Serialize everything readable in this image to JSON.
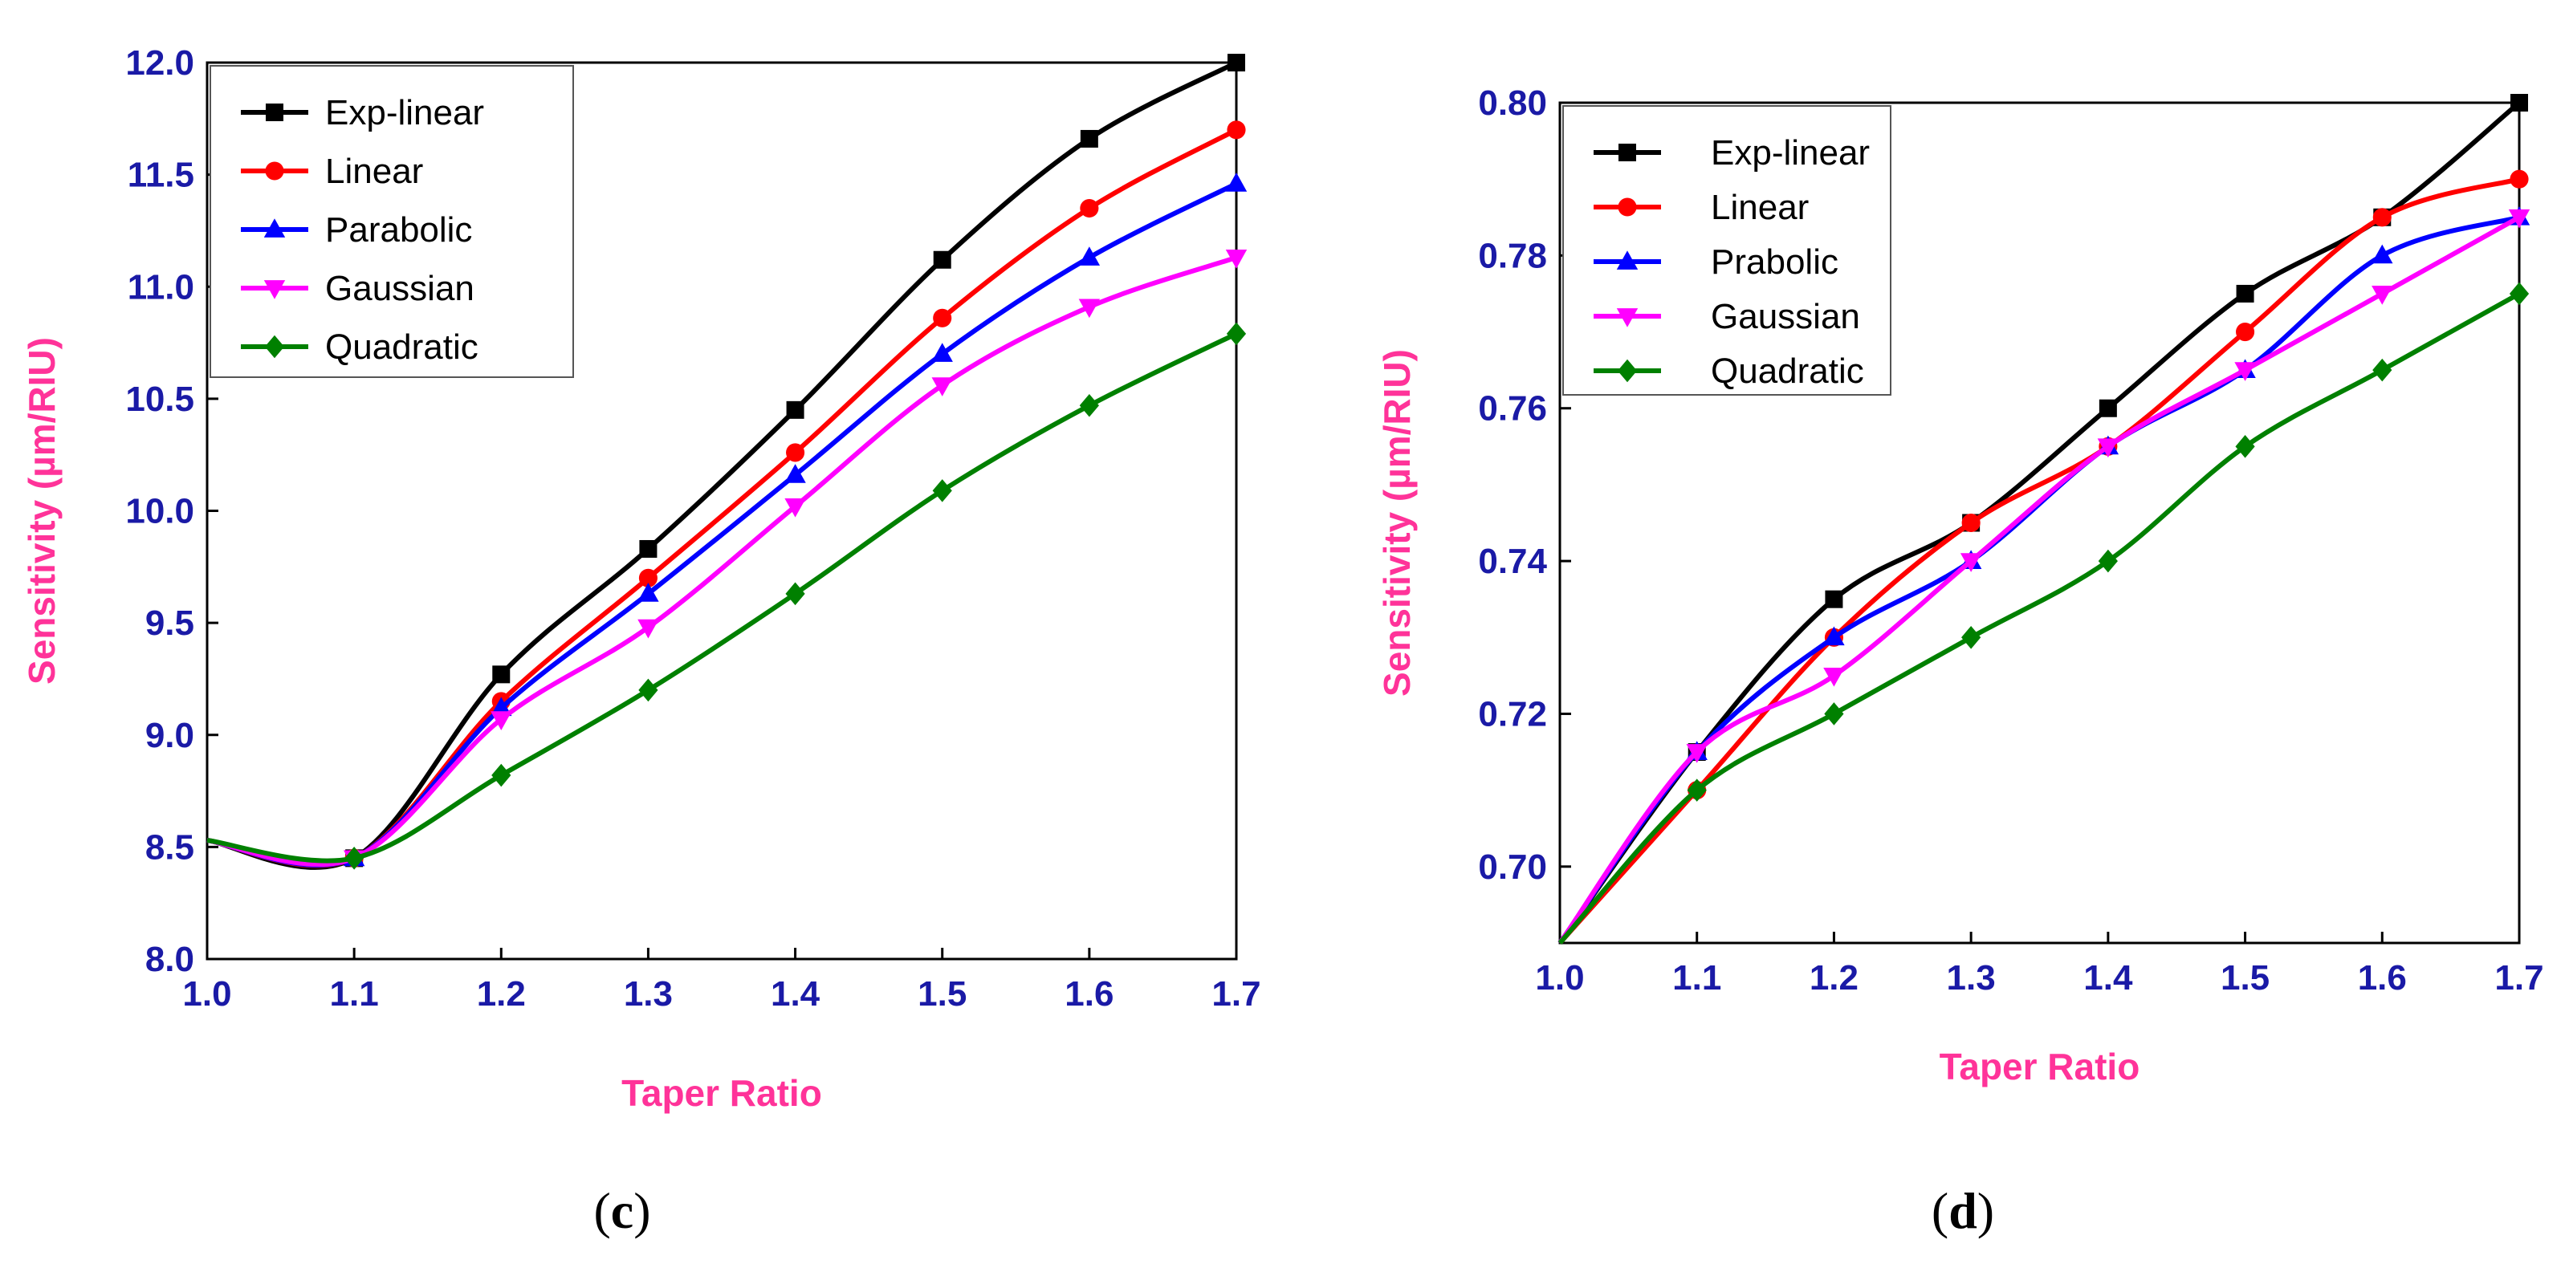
{
  "chart_data": [
    {
      "type": "line",
      "panel": "c",
      "caption_open": "(",
      "caption_letter": "c",
      "caption_close": ")",
      "xlabel": "Taper Ratio",
      "ylabel": "Sensitivity (µm/RIU)",
      "xlim": [
        1.0,
        1.7
      ],
      "ylim": [
        8.0,
        12.0
      ],
      "xticks": [
        "1.0",
        "1.1",
        "1.2",
        "1.3",
        "1.4",
        "1.5",
        "1.6",
        "1.7"
      ],
      "yticks": [
        "8.0",
        "8.5",
        "9.0",
        "9.5",
        "10.0",
        "10.5",
        "11.0",
        "11.5",
        "12.0"
      ],
      "legend_position": "top-left",
      "x": [
        1.0,
        1.1,
        1.2,
        1.3,
        1.4,
        1.5,
        1.6,
        1.7
      ],
      "series": [
        {
          "name": "Exp-linear",
          "color": "#000000",
          "marker": "square",
          "values": [
            8.53,
            8.45,
            9.27,
            9.83,
            10.45,
            11.12,
            11.66,
            12.0
          ]
        },
        {
          "name": "Linear",
          "color": "#ff0000",
          "marker": "circle",
          "values": [
            8.53,
            8.45,
            9.15,
            9.7,
            10.26,
            10.86,
            11.35,
            11.7
          ]
        },
        {
          "name": "Parabolic",
          "color": "#0000ff",
          "marker": "triangle-up",
          "values": [
            8.53,
            8.45,
            9.12,
            9.63,
            10.16,
            10.7,
            11.13,
            11.46
          ]
        },
        {
          "name": "Gaussian",
          "color": "#ff00ff",
          "marker": "triangle-down",
          "values": [
            8.53,
            8.45,
            9.07,
            9.48,
            10.02,
            10.56,
            10.91,
            11.13
          ]
        },
        {
          "name": "Quadratic",
          "color": "#008000",
          "marker": "diamond",
          "values": [
            8.53,
            8.45,
            8.82,
            9.2,
            9.63,
            10.09,
            10.47,
            10.79
          ]
        }
      ]
    },
    {
      "type": "line",
      "panel": "d",
      "caption_open": "(",
      "caption_letter": "d",
      "caption_close": ")",
      "xlabel": "Taper Ratio",
      "ylabel": "Sensitivity (µm/RIU)",
      "xlim": [
        1.0,
        1.7
      ],
      "ylim": [
        0.69,
        0.8
      ],
      "xticks": [
        "1.0",
        "1.1",
        "1.2",
        "1.3",
        "1.4",
        "1.5",
        "1.6",
        "1.7"
      ],
      "yticks": [
        "0.70",
        "0.72",
        "0.74",
        "0.76",
        "0.78",
        "0.80"
      ],
      "legend_position": "top-left",
      "x": [
        1.0,
        1.1,
        1.2,
        1.3,
        1.4,
        1.5,
        1.6,
        1.7
      ],
      "series": [
        {
          "name": "Exp-linear",
          "color": "#000000",
          "marker": "square",
          "values": [
            0.69,
            0.715,
            0.735,
            0.745,
            0.76,
            0.775,
            0.785,
            0.8
          ]
        },
        {
          "name": "Linear",
          "color": "#ff0000",
          "marker": "circle",
          "values": [
            0.69,
            0.71,
            0.73,
            0.745,
            0.755,
            0.77,
            0.785,
            0.79
          ]
        },
        {
          "name": "Prabolic",
          "color": "#0000ff",
          "marker": "triangle-up",
          "values": [
            0.69,
            0.715,
            0.73,
            0.74,
            0.755,
            0.765,
            0.78,
            0.785
          ]
        },
        {
          "name": "Gaussian",
          "color": "#ff00ff",
          "marker": "triangle-down",
          "values": [
            0.69,
            0.715,
            0.725,
            0.74,
            0.755,
            0.765,
            0.775,
            0.785
          ]
        },
        {
          "name": "Quadratic",
          "color": "#008000",
          "marker": "diamond",
          "values": [
            0.69,
            0.71,
            0.72,
            0.73,
            0.74,
            0.755,
            0.765,
            0.775
          ]
        }
      ]
    }
  ]
}
